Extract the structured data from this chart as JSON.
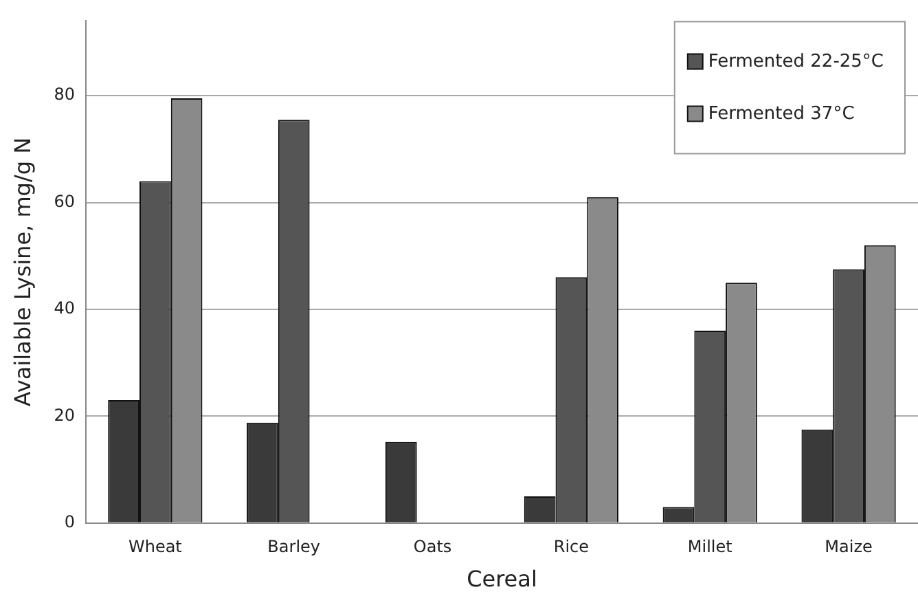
{
  "chart_data": {
    "type": "bar",
    "xlabel": "Cereal",
    "ylabel": "Available Lysine, mg/g N",
    "categories": [
      "Wheat",
      "Barley",
      "Oats",
      "Rice",
      "Millet",
      "Maize"
    ],
    "series": [
      {
        "color": "#3a3a3a",
        "values": [
          23,
          18.8,
          15.2,
          5,
          3,
          17.5
        ]
      },
      {
        "name": "Fermented 22-25°C",
        "color": "#555555",
        "values": [
          64,
          75.5,
          null,
          46,
          36,
          47.5
        ]
      },
      {
        "name": "Fermented 37°C",
        "color": "#8a8a8a",
        "values": [
          79.5,
          null,
          null,
          61,
          45,
          52
        ]
      }
    ],
    "ylim": [
      0,
      94
    ],
    "yticks": [
      0,
      20,
      40,
      60,
      80
    ],
    "grid": "y",
    "legend": "top right"
  }
}
